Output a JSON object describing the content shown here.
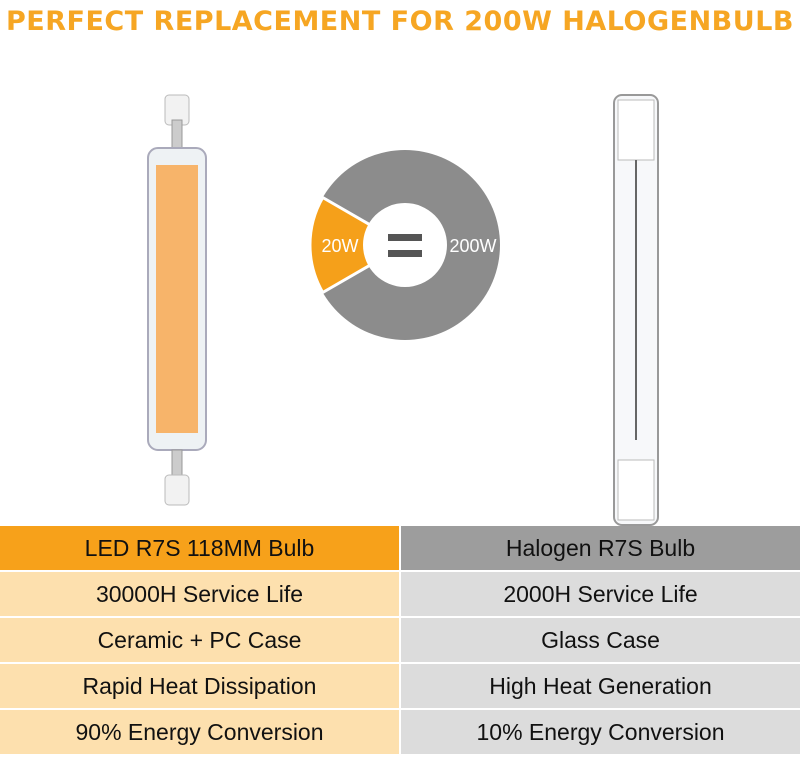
{
  "header": {
    "title": "PERFECT REPLACEMENT FOR 200W HALOGENBULB"
  },
  "comparison": {
    "led_power": "20W",
    "halogen_power": "200W"
  },
  "table": {
    "headers": [
      "LED R7S 118MM Bulb",
      "Halogen R7S Bulb"
    ],
    "rows": [
      [
        "30000H Service Life",
        "2000H Service Life"
      ],
      [
        "Ceramic + PC Case",
        "Glass Case"
      ],
      [
        "Rapid Heat Dissipation",
        "High Heat Generation"
      ],
      [
        "90% Energy Conversion",
        "10% Energy Conversion"
      ]
    ]
  }
}
